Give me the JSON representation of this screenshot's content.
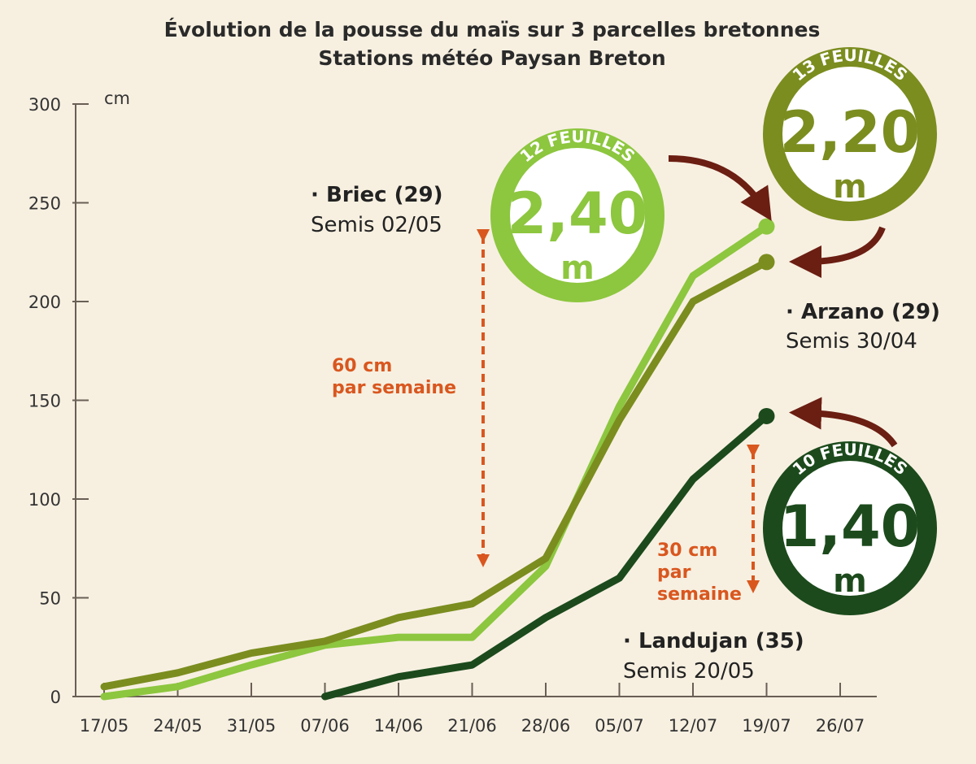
{
  "chart_data": {
    "type": "line",
    "title": "Évolution de la pousse du maïs sur 3 parcelles bretonnes",
    "subtitle": "Stations météo Paysan Breton",
    "xlabel": "",
    "ylabel": "cm",
    "ylim": [
      0,
      300
    ],
    "yticks": [
      "0",
      "50",
      "100",
      "150",
      "200",
      "250",
      "300"
    ],
    "categories": [
      "17/05",
      "24/05",
      "31/05",
      "07/06",
      "14/06",
      "21/06",
      "28/06",
      "05/07",
      "12/07",
      "19/07",
      "26/07"
    ],
    "series": [
      {
        "name": "Briec (29)",
        "sub": "Semis 02/05",
        "color": "#8dc63f",
        "values": [
          0,
          5,
          16,
          26,
          30,
          30,
          66,
          147,
          213,
          238,
          null
        ]
      },
      {
        "name": "Arzano (29)",
        "sub": "Semis 30/04",
        "color": "#7b8d1f",
        "values": [
          5,
          12,
          22,
          28,
          40,
          47,
          70,
          140,
          200,
          220,
          null
        ]
      },
      {
        "name": "Landujan (35)",
        "sub": "Semis 20/05",
        "color": "#1c4a1c",
        "values": [
          null,
          null,
          null,
          0,
          10,
          16,
          40,
          60,
          110,
          142,
          null
        ]
      }
    ],
    "badges": [
      {
        "series": "Briec (29)",
        "leaves": "12 FEUILLES",
        "height": "2,40",
        "unit": "m",
        "color": "#8dc63f"
      },
      {
        "series": "Arzano (29)",
        "leaves": "13 FEUILLES",
        "height": "2,20",
        "unit": "m",
        "color": "#7b8d1f"
      },
      {
        "series": "Landujan (35)",
        "leaves": "10 FEUILLES",
        "height": "1,40",
        "unit": "m",
        "color": "#1c4a1c"
      }
    ],
    "annotations": [
      {
        "line1": "60 cm",
        "line2": "par semaine",
        "color": "#d9571f"
      },
      {
        "line1": "30 cm",
        "line2": "par",
        "line3": "semaine",
        "color": "#d9571f"
      }
    ],
    "arrow_color": "#6b1e12",
    "grid": false
  }
}
